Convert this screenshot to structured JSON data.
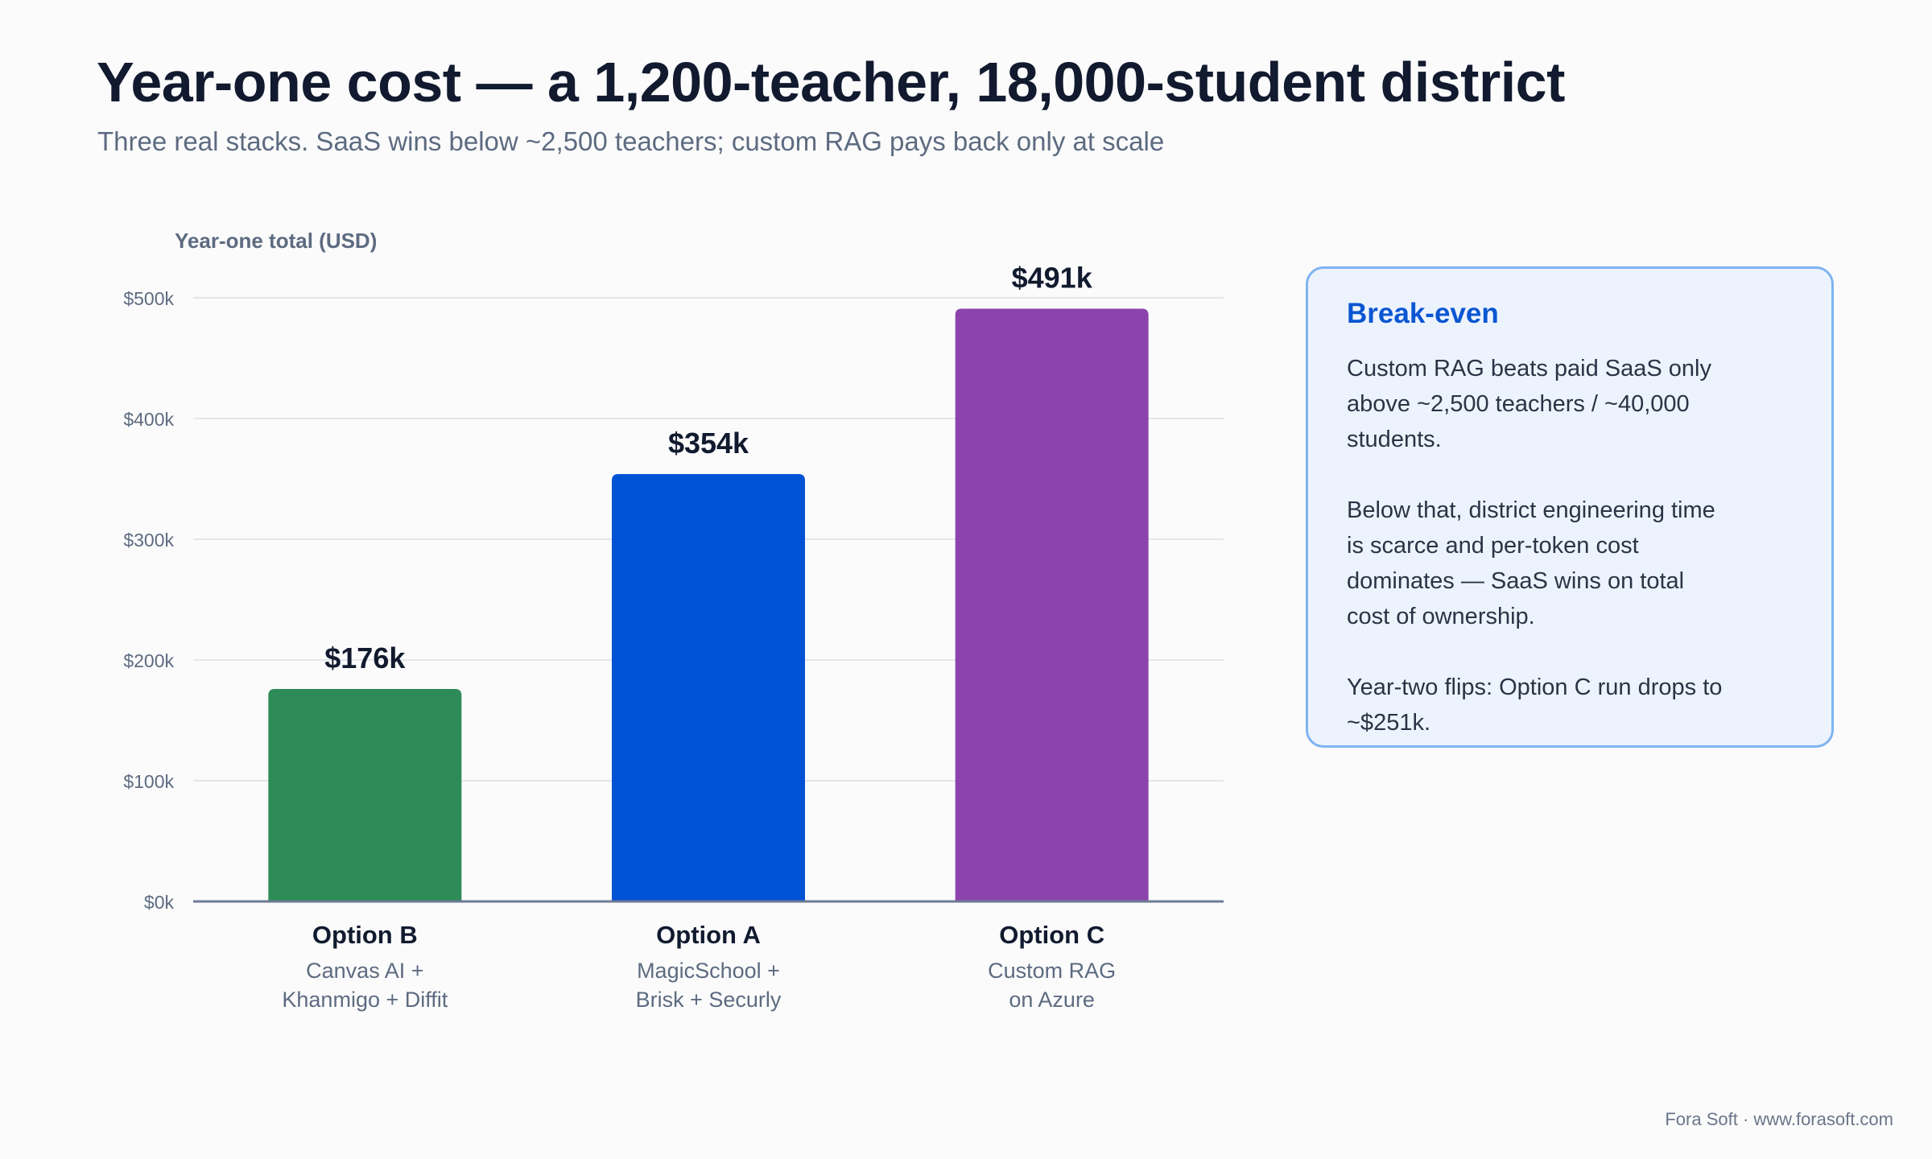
{
  "title": "Year-one cost — a 1,200-teacher, 18,000-student district",
  "subtitle": "Three real stacks. SaaS wins below ~2,500 teachers; custom RAG pays back only at scale",
  "chart_data": {
    "type": "bar",
    "ylabel": "Year-one total (USD)",
    "ylim": [
      0,
      500
    ],
    "yticks": [
      {
        "value": 0,
        "label": "$0k"
      },
      {
        "value": 100,
        "label": "$100k"
      },
      {
        "value": 200,
        "label": "$200k"
      },
      {
        "value": 300,
        "label": "$300k"
      },
      {
        "value": 400,
        "label": "$400k"
      },
      {
        "value": 500,
        "label": "$500k"
      }
    ],
    "grid": true,
    "bars": [
      {
        "category": "Option B",
        "sublabel": [
          "Canvas AI +",
          "Khanmigo + Diffit"
        ],
        "value": 176,
        "value_label": "$176k",
        "color": "#2e8b57"
      },
      {
        "category": "Option A",
        "sublabel": [
          "MagicSchool +",
          "Brisk + Securly"
        ],
        "value": 354,
        "value_label": "$354k",
        "color": "#0052d4"
      },
      {
        "category": "Option C",
        "sublabel": [
          "Custom RAG",
          "on Azure"
        ],
        "value": 491,
        "value_label": "$491k",
        "color": "#8c44ad"
      }
    ]
  },
  "panel": {
    "title": "Break-even",
    "paragraphs": [
      "Custom RAG beats paid SaaS only above ~2,500 teachers / ~40,000 students.",
      "Below that, district engineering time is scarce and per-token cost dominates — SaaS wins on total cost of ownership.",
      "Year-two flips: Option C run drops to ~$251k."
    ]
  },
  "footer": "Fora Soft · www.forasoft.com",
  "colors": {
    "title": "#111a2e",
    "muted": "#5d6b80",
    "grid": "#e3e6eb",
    "axis": "#6b7a93",
    "panel_bg": "#edf3fd",
    "panel_border": "#7fb4f2",
    "panel_title": "#0a56d2"
  }
}
